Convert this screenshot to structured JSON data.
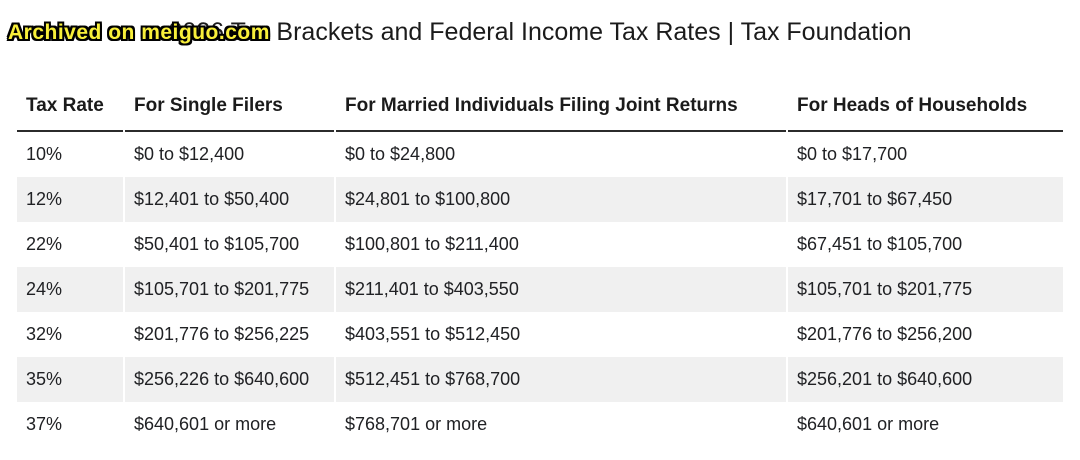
{
  "watermark": {
    "text": "Archived on meiguo.com",
    "text_color": "#f8ef3a",
    "outline_color": "#000000"
  },
  "title": "2026 Tax Brackets and Federal Income Tax Rates | Tax Foundation",
  "chart_data": {
    "type": "table",
    "title": "2026 Tax Brackets and Federal Income Tax Rates | Tax Foundation",
    "columns": [
      "Tax Rate",
      "For Single Filers",
      "For Married Individuals Filing Joint Returns",
      "For Heads of Households"
    ],
    "rows": [
      [
        "10%",
        "$0 to $12,400",
        "$0 to $24,800",
        "$0 to $17,700"
      ],
      [
        "12%",
        "$12,401 to $50,400",
        "$24,801 to $100,800",
        "$17,701 to $67,450"
      ],
      [
        "22%",
        "$50,401 to $105,700",
        "$100,801 to $211,400",
        "$67,451 to $105,700"
      ],
      [
        "24%",
        "$105,701 to $201,775",
        "$211,401 to $403,550",
        "$105,701 to $201,775"
      ],
      [
        "32%",
        "$201,776 to $256,225",
        "$403,551 to $512,450",
        "$201,776 to $256,200"
      ],
      [
        "35%",
        "$256,226 to $640,600",
        "$512,451 to $768,700",
        "$256,201 to $640,600"
      ],
      [
        "37%",
        "$640,601 or more",
        "$768,701 or more",
        "$640,601 or more"
      ]
    ],
    "layout": {
      "striped_rows": "even",
      "stripe_color": "#f0f0f0",
      "header_rule_color": "#2b2b2b",
      "text_color": "#202124",
      "grid": "off",
      "legend": "none"
    }
  }
}
